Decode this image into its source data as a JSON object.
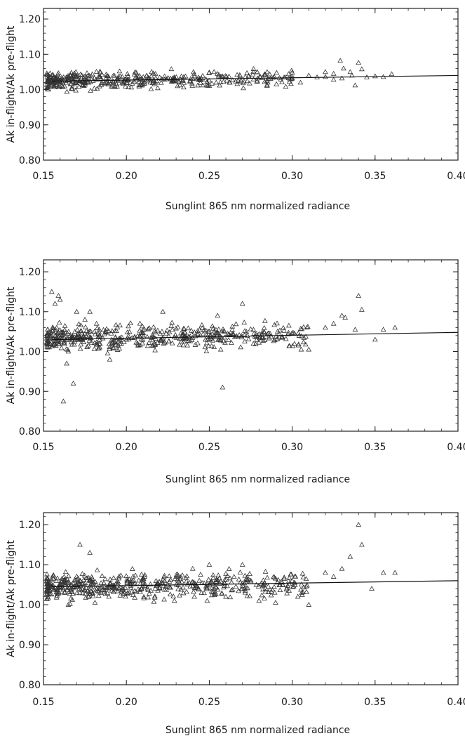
{
  "chart_data": [
    {
      "type": "scatter",
      "xlabel": "Sunglint 865 nm normalized radiance",
      "ylabel": "Ak in-flight/Ak pre-flight",
      "xlim": [
        0.15,
        0.4
      ],
      "ylim": [
        0.8,
        1.23
      ],
      "x_ticks": [
        "0.15",
        "0.20",
        "0.25",
        "0.30",
        "0.35",
        "0.40"
      ],
      "y_ticks": [
        "0.80",
        "0.90",
        "1.00",
        "1.10",
        "1.20"
      ],
      "marker": "triangle",
      "grid": false,
      "band": {
        "x_start": 0.152,
        "x_end": 0.3,
        "center_start": 1.025,
        "center_end": 1.033,
        "spread": 0.012,
        "n_points": 420
      },
      "fit_line": {
        "x": [
          0.155,
          0.4
        ],
        "y": [
          1.024,
          1.04
        ]
      },
      "points": {
        "x": [
          0.31,
          0.315,
          0.32,
          0.325,
          0.329,
          0.331,
          0.335,
          0.336,
          0.338,
          0.34,
          0.342,
          0.345,
          0.35,
          0.355,
          0.36,
          0.33,
          0.325,
          0.32,
          0.305,
          0.3
        ],
        "y": [
          1.04,
          1.035,
          1.05,
          1.045,
          1.082,
          1.06,
          1.05,
          1.04,
          1.012,
          1.076,
          1.058,
          1.035,
          1.038,
          1.036,
          1.044,
          1.032,
          1.028,
          1.036,
          1.02,
          1.048
        ]
      }
    },
    {
      "type": "scatter",
      "xlabel": "Sunglint 865 nm normalized radiance",
      "ylabel": "Ak in-flight/Ak pre-flight",
      "xlim": [
        0.15,
        0.4
      ],
      "ylim": [
        0.8,
        1.23
      ],
      "x_ticks": [
        "0.15",
        "0.20",
        "0.25",
        "0.30",
        "0.35",
        "0.40"
      ],
      "y_ticks": [
        "0.80",
        "0.90",
        "1.00",
        "1.10",
        "1.20"
      ],
      "marker": "triangle",
      "grid": false,
      "band": {
        "x_start": 0.152,
        "x_end": 0.31,
        "center_start": 1.033,
        "center_end": 1.042,
        "spread": 0.014,
        "n_points": 480
      },
      "fit_line": {
        "x": [
          0.155,
          0.4
        ],
        "y": [
          1.03,
          1.048
        ]
      },
      "points": {
        "x": [
          0.155,
          0.157,
          0.159,
          0.16,
          0.162,
          0.158,
          0.164,
          0.165,
          0.168,
          0.17,
          0.175,
          0.178,
          0.182,
          0.19,
          0.222,
          0.255,
          0.258,
          0.27,
          0.32,
          0.325,
          0.33,
          0.332,
          0.338,
          0.34,
          0.342,
          0.35,
          0.355,
          0.362,
          0.31,
          0.298
        ],
        "y": [
          1.15,
          1.12,
          1.14,
          1.13,
          0.875,
          1.06,
          0.97,
          1.0,
          0.92,
          1.1,
          1.08,
          1.1,
          1.07,
          0.98,
          1.1,
          1.09,
          0.91,
          1.12,
          1.06,
          1.07,
          1.09,
          1.085,
          1.055,
          1.14,
          1.105,
          1.03,
          1.055,
          1.06,
          1.005,
          1.065
        ]
      }
    },
    {
      "type": "scatter",
      "xlabel": "Sunglint 865 nm normalized radiance",
      "ylabel": "Ak in-flight/Ak pre-flight",
      "xlim": [
        0.15,
        0.4
      ],
      "ylim": [
        0.8,
        1.23
      ],
      "x_ticks": [
        "0.15",
        "0.20",
        "0.25",
        "0.30",
        "0.35",
        "0.40"
      ],
      "y_ticks": [
        "0.80",
        "0.90",
        "1.00",
        "1.10",
        "1.20"
      ],
      "marker": "triangle",
      "grid": false,
      "band": {
        "x_start": 0.152,
        "x_end": 0.31,
        "center_start": 1.045,
        "center_end": 1.052,
        "spread": 0.016,
        "n_points": 520
      },
      "fit_line": {
        "x": [
          0.155,
          0.4
        ],
        "y": [
          1.045,
          1.06
        ]
      },
      "points": {
        "x": [
          0.165,
          0.166,
          0.172,
          0.178,
          0.24,
          0.25,
          0.27,
          0.28,
          0.29,
          0.31,
          0.32,
          0.325,
          0.33,
          0.335,
          0.34,
          0.342,
          0.348,
          0.355,
          0.362,
          0.3,
          0.26
        ],
        "y": [
          1.0,
          1.002,
          1.15,
          1.13,
          1.09,
          1.1,
          1.1,
          1.01,
          1.005,
          1.0,
          1.08,
          1.07,
          1.09,
          1.12,
          1.2,
          1.15,
          1.04,
          1.08,
          1.08,
          1.06,
          1.02
        ]
      }
    }
  ]
}
